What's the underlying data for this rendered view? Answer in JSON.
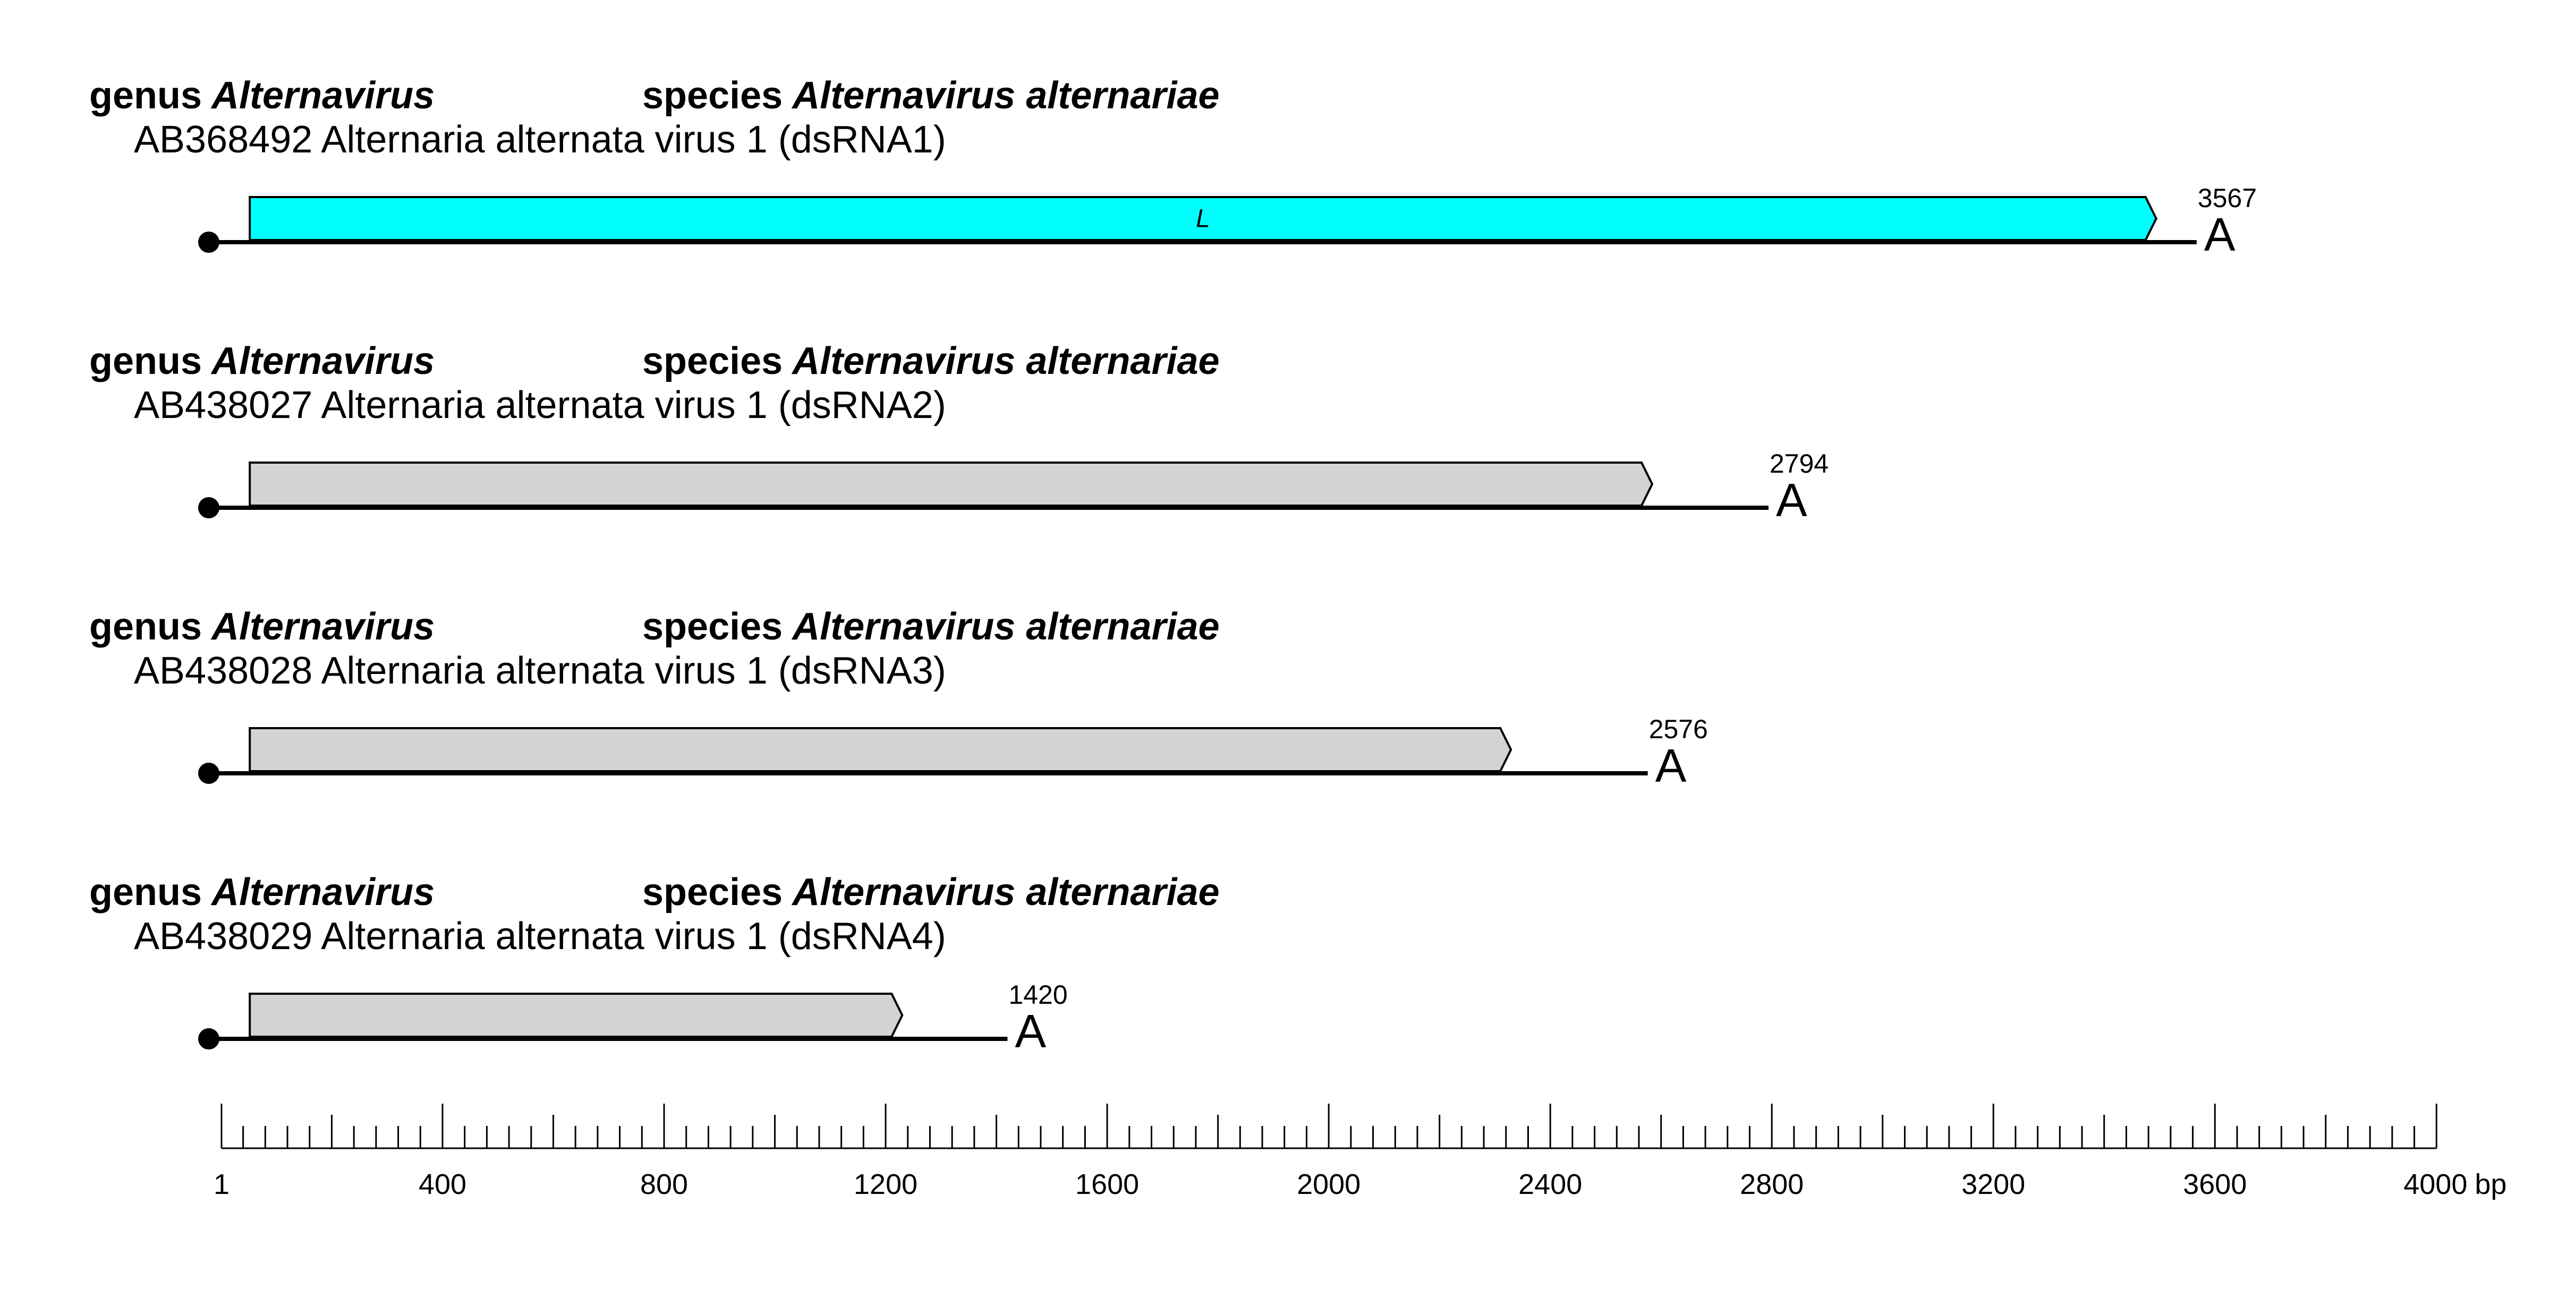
{
  "colors": {
    "coding_L": "#00ffff",
    "coding_other": "#d3d3d3",
    "stroke": "#000000"
  },
  "segments": [
    {
      "genus_prefix": "genus",
      "genus": "Alternavirus",
      "species_prefix": "species",
      "species": "Alternavirus alternariae",
      "accession_line": "AB368492 Alternaria alternata virus 1 (dsRNA1)",
      "length": 3567,
      "length_label": "3567",
      "tail_label": "A",
      "orf": {
        "start": 52,
        "end": 3494,
        "label": "L",
        "color": "#00ffff"
      }
    },
    {
      "genus_prefix": "genus",
      "genus": "Alternavirus",
      "species_prefix": "species",
      "species": "Alternavirus alternariae",
      "accession_line": "AB438027 Alternaria alternata virus 1 (dsRNA2)",
      "length": 2794,
      "length_label": "2794",
      "tail_label": "A",
      "orf": {
        "start": 52,
        "end": 2584,
        "label": "",
        "color": "#d3d3d3"
      }
    },
    {
      "genus_prefix": "genus",
      "genus": "Alternavirus",
      "species_prefix": "species",
      "species": "Alternavirus alternariae",
      "accession_line": "AB438028 Alternaria alternata virus 1 (dsRNA3)",
      "length": 2576,
      "length_label": "2576",
      "tail_label": "A",
      "orf": {
        "start": 52,
        "end": 2329,
        "label": "",
        "color": "#d3d3d3"
      }
    },
    {
      "genus_prefix": "genus",
      "genus": "Alternavirus",
      "species_prefix": "species",
      "species": "Alternavirus alternariae",
      "accession_line": "AB438029 Alternaria alternata virus 1 (dsRNA4)",
      "length": 1420,
      "length_label": "1420",
      "tail_label": "A",
      "orf": {
        "start": 52,
        "end": 1230,
        "label": "",
        "color": "#d3d3d3"
      }
    }
  ],
  "scale": {
    "min": 1,
    "max": 4000,
    "minor_step": 40,
    "medium_step": 200,
    "major_step": 400,
    "tick_labels": [
      "1",
      "400",
      "800",
      "1200",
      "1600",
      "2000",
      "2400",
      "2800",
      "3200",
      "3600",
      "4000"
    ],
    "unit": "bp"
  }
}
